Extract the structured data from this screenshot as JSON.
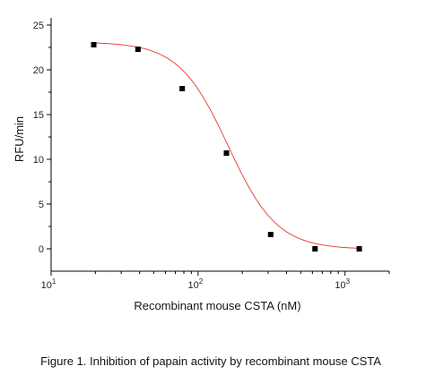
{
  "chart_data": {
    "type": "scatter",
    "x_scale": "log",
    "xlabel": "Recombinant mouse CSTA (nM)",
    "ylabel": "RFU/min",
    "xlim": [
      10,
      2000
    ],
    "ylim": [
      -2.5,
      25.8
    ],
    "x_major_ticks": [
      10,
      100,
      1000
    ],
    "x_tick_labels": [
      {
        "base": "10",
        "exp": "1"
      },
      {
        "base": "10",
        "exp": "2"
      },
      {
        "base": "10",
        "exp": "3"
      }
    ],
    "y_ticks": [
      0,
      5,
      10,
      15,
      20,
      25
    ],
    "y_tick_labels": [
      "0",
      "5",
      "10",
      "15",
      "20",
      "25"
    ],
    "series": [
      {
        "x": [
          19.5,
          39,
          78,
          156,
          312,
          625,
          1250
        ],
        "y": [
          22.8,
          22.3,
          17.9,
          10.7,
          1.6,
          0.0,
          0.0
        ],
        "marker": "square",
        "color": "#000000"
      }
    ],
    "fit_curve": {
      "model": "four-parameter logistic",
      "top": 23.1,
      "bottom": -0.05,
      "ic50": 160,
      "hill": 2.6,
      "color": "#e8473e"
    },
    "grid": false
  },
  "caption": "Figure 1. Inhibition of papain activity by recombinant mouse CSTA"
}
